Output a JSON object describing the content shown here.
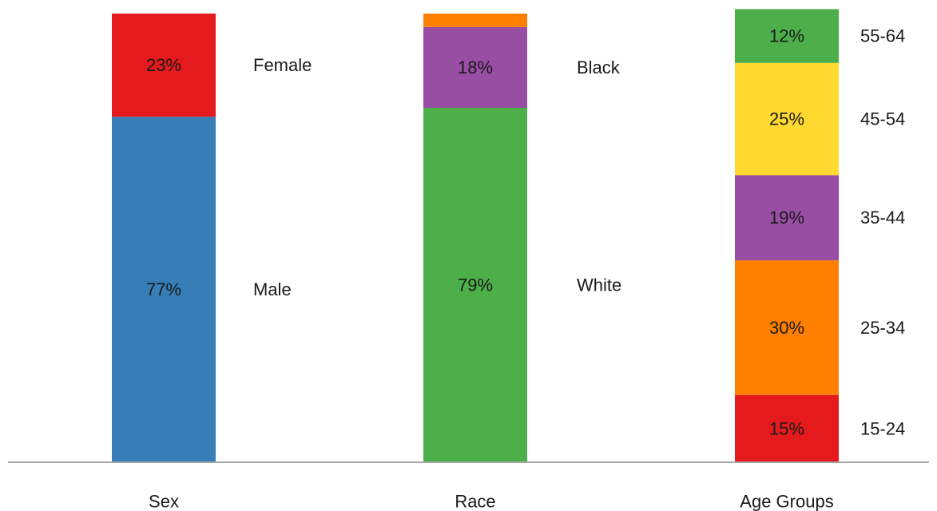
{
  "chart_data": {
    "type": "bar",
    "stacked": true,
    "percent": true,
    "grid": false,
    "legend": "none",
    "bars": [
      {
        "category": "Sex",
        "segments": [
          {
            "name": "Male",
            "value": 77,
            "label": "77%",
            "color": "#377eb8"
          },
          {
            "name": "Female",
            "value": 23,
            "label": "23%",
            "color": "#e41a1c"
          }
        ]
      },
      {
        "category": "Race",
        "segments": [
          {
            "name": "White",
            "value": 79,
            "label": "79%",
            "color": "#4daf4a"
          },
          {
            "name": "Black",
            "value": 18,
            "label": "18%",
            "color": "#984ea3"
          },
          {
            "name": "",
            "value": 3,
            "label": "",
            "color": "#ff7f00"
          }
        ]
      },
      {
        "category": "Age Groups",
        "segments": [
          {
            "name": "15-24",
            "value": 15,
            "label": "15%",
            "color": "#e41a1c"
          },
          {
            "name": "25-34",
            "value": 30,
            "label": "30%",
            "color": "#ff7f00"
          },
          {
            "name": "35-44",
            "value": 19,
            "label": "19%",
            "color": "#984ea3"
          },
          {
            "name": "45-54",
            "value": 25,
            "label": "25%",
            "color": "#ffd92f"
          },
          {
            "name": "55-64",
            "value": 12,
            "label": "12%",
            "color": "#4daf4a"
          }
        ]
      }
    ]
  }
}
